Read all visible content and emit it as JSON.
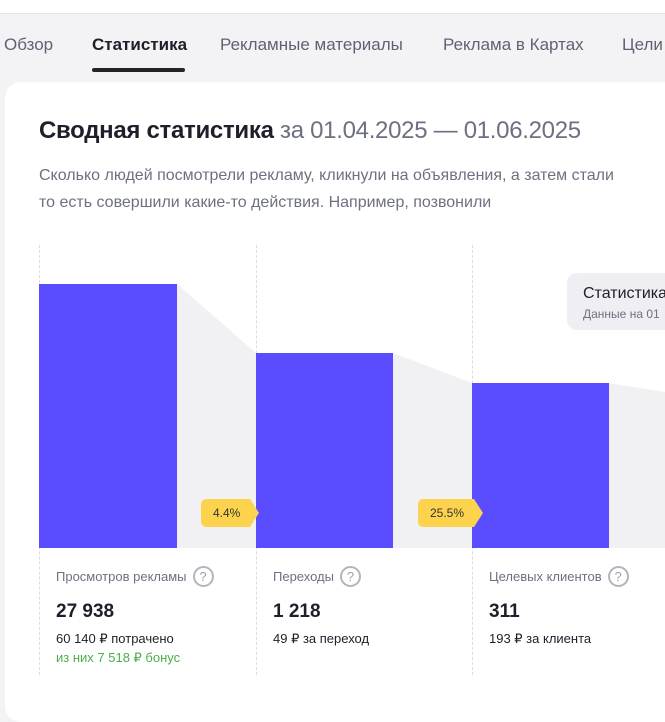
{
  "tabs": [
    {
      "label": "Обзор"
    },
    {
      "label": "Статистика",
      "active": true
    },
    {
      "label": "Рекламные материалы"
    },
    {
      "label": "Реклама в Картах"
    },
    {
      "label": "Цели"
    }
  ],
  "summary": {
    "title": "Сводная статистика",
    "dates": "за 01.04.2025 — 01.06.2025",
    "subtitle_1": "Сколько людей посмотрели рекламу, кликнули на объявления, а затем стали",
    "subtitle_2": "то есть совершили какие-то действия. Например, позвонили"
  },
  "tooltip": {
    "title": "Статистика",
    "data_note": "Данные на 01"
  },
  "conversions": [
    "4.4%",
    "25.5%"
  ],
  "metrics": [
    {
      "label": "Просмотров рекламы",
      "value": "27 938",
      "note": "60 140 ₽ потрачено",
      "bonus": "из них 7 518 ₽ бонус"
    },
    {
      "label": "Переходы",
      "value": "1 218",
      "note": "49 ₽ за переход"
    },
    {
      "label": "Целевых клиентов",
      "value": "311",
      "note": "193 ₽ за клиента"
    }
  ],
  "colors": {
    "bar": "#5a4cff",
    "badge": "#fdd34d",
    "bonus": "#4cae4c"
  },
  "icons": {
    "help": "question-circle-icon"
  }
}
